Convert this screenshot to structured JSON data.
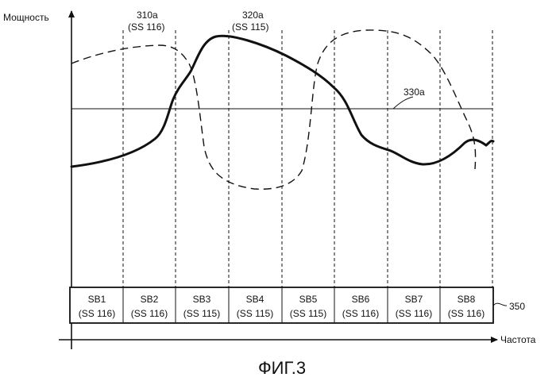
{
  "axes": {
    "y_label": "Мощность",
    "x_label": "Частота"
  },
  "curves": {
    "dashed": {
      "label": "310a",
      "sub": "(SS 116)"
    },
    "solid": {
      "label": "320a",
      "sub": "(SS 115)"
    },
    "threshold": {
      "label": "330a"
    }
  },
  "subbands": [
    {
      "name": "SB1",
      "station": "(SS 116)"
    },
    {
      "name": "SB2",
      "station": "(SS 116)"
    },
    {
      "name": "SB3",
      "station": "(SS 115)"
    },
    {
      "name": "SB4",
      "station": "(SS 115)"
    },
    {
      "name": "SB5",
      "station": "(SS 115)"
    },
    {
      "name": "SB6",
      "station": "(SS 116)"
    },
    {
      "name": "SB7",
      "station": "(SS 116)"
    },
    {
      "name": "SB8",
      "station": "(SS 116)"
    }
  ],
  "table_ref": "350",
  "figure_caption": "ФИГ.3"
}
